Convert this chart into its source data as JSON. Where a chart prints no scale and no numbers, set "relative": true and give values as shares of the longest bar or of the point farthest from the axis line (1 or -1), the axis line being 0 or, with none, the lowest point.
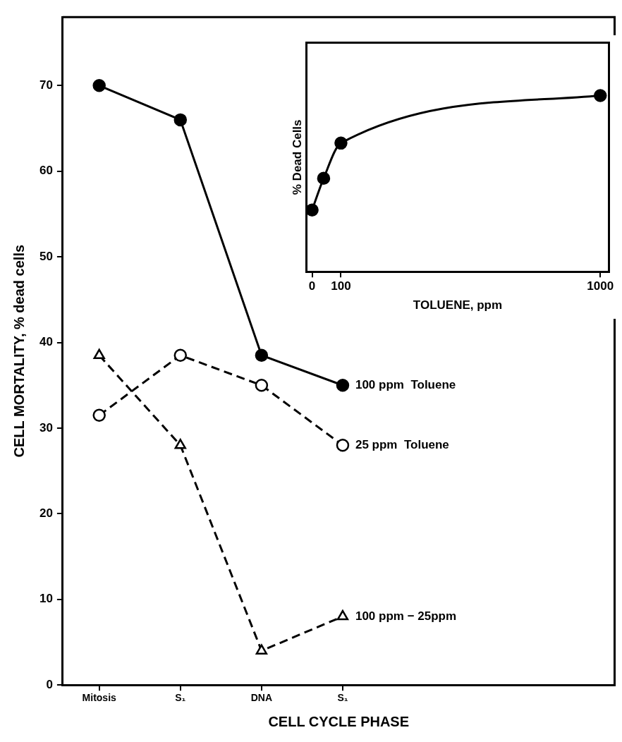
{
  "chart_data": [
    {
      "type": "line",
      "xlabel": "CELL CYCLE PHASE",
      "ylabel": "CELL MORTALITY, % dead cells",
      "categories": [
        "Mitosis",
        "S₁",
        "DNA",
        "S₁"
      ],
      "ylim": [
        0,
        78
      ],
      "yticks": [
        0,
        10,
        20,
        30,
        40,
        50,
        60,
        70
      ],
      "grid": false,
      "legend": false,
      "series": [
        {
          "name": "100 ppm  Toluene",
          "color": "#000000",
          "values": [
            70,
            66,
            38.5,
            35
          ],
          "marker": "circle",
          "line_style": "solid"
        },
        {
          "name": "25 ppm  Toluene",
          "color": "#000000",
          "values": [
            31.5,
            38.5,
            35,
            28
          ],
          "marker": "circle",
          "line_style": "dashed"
        },
        {
          "name": "100 ppm − 25ppm",
          "color": "#000000",
          "values": [
            38.5,
            28,
            4,
            8
          ],
          "marker": "triangle",
          "line_style": "dashed"
        }
      ]
    },
    {
      "type": "line",
      "xlabel": "TOLUENE, ppm",
      "ylabel": "% Dead Cells",
      "relative": true,
      "x": [
        0,
        40,
        100,
        1000
      ],
      "xlim": [
        -20,
        1030
      ],
      "xticks": [
        0,
        100,
        1000
      ],
      "grid": false,
      "legend": false,
      "series": [
        {
          "color": "#000000",
          "values": [
            0.35,
            0.53,
            0.73,
            1
          ],
          "marker": "circle",
          "line_style": "solid"
        }
      ]
    }
  ]
}
